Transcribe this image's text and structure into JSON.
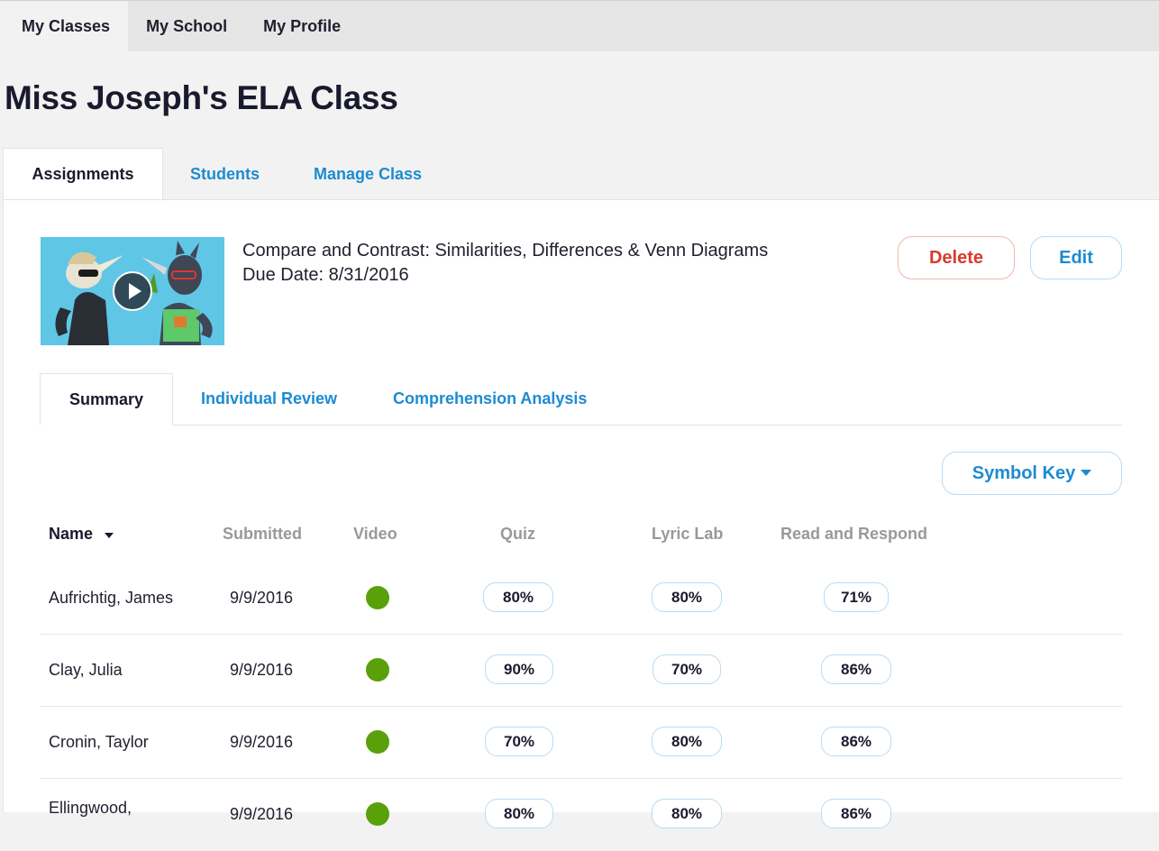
{
  "topnav": {
    "items": [
      {
        "label": "My Classes",
        "active": true
      },
      {
        "label": "My School",
        "active": false
      },
      {
        "label": "My Profile",
        "active": false
      }
    ]
  },
  "page": {
    "title": "Miss Joseph's ELA Class"
  },
  "class_tabs": [
    "Assignments",
    "Students",
    "Manage Class"
  ],
  "assignment": {
    "title": "Compare and Contrast: Similarities, Differences & Venn Diagrams",
    "due": "Due Date: 8/31/2016",
    "delete_label": "Delete",
    "edit_label": "Edit"
  },
  "sub_tabs": [
    "Summary",
    "Individual Review",
    "Comprehension Analysis"
  ],
  "symbol_key_label": "Symbol Key",
  "table": {
    "headers": [
      "Name",
      "Submitted",
      "Video",
      "Quiz",
      "Lyric Lab",
      "Read and Respond"
    ],
    "rows": [
      {
        "name": "Aufrichtig, James",
        "submitted": "9/9/2016",
        "video": "complete",
        "quiz": "80%",
        "lyric": "80%",
        "respond": "71%"
      },
      {
        "name": "Clay, Julia",
        "submitted": "9/9/2016",
        "video": "complete",
        "quiz": "90%",
        "lyric": "70%",
        "respond": "86%"
      },
      {
        "name": "Cronin, Taylor",
        "submitted": "9/9/2016",
        "video": "complete",
        "quiz": "70%",
        "lyric": "80%",
        "respond": "86%"
      },
      {
        "name": "Ellingwood,",
        "submitted": "9/9/2016",
        "video": "complete",
        "quiz": "80%",
        "lyric": "80%",
        "respond": "86%"
      }
    ]
  },
  "colors": {
    "accent": "#1d8bd1",
    "danger": "#d93a2b",
    "complete": "#5aa00a"
  }
}
